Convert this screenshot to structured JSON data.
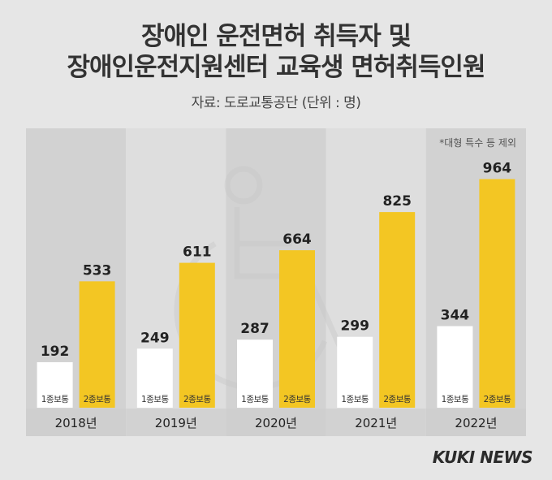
{
  "header": {
    "title_line1": "장애인 운전면허 취득자 및",
    "title_line2": "장애인운전지원센터 교육생 면허취득인원",
    "source": "자료: 도로교통공단 (단위 : 명)"
  },
  "note": "*대형 특수 등 제외",
  "brand": "KUKI NEWS",
  "colors": {
    "series1": "#ffffff",
    "series2": "#f3c623",
    "panel_dark": "#d2d2d2",
    "panel_light": "#dedede",
    "year_band": "#cfcfcf"
  },
  "chart_data": {
    "type": "bar",
    "categories": [
      "2018년",
      "2019년",
      "2020년",
      "2021년",
      "2022년"
    ],
    "series": [
      {
        "name": "1종보통",
        "values": [
          192,
          249,
          287,
          299,
          344
        ]
      },
      {
        "name": "2종보통",
        "values": [
          533,
          611,
          664,
          825,
          964
        ]
      }
    ],
    "ylim": [
      0,
      1000
    ],
    "grid": false,
    "legend": "none"
  }
}
